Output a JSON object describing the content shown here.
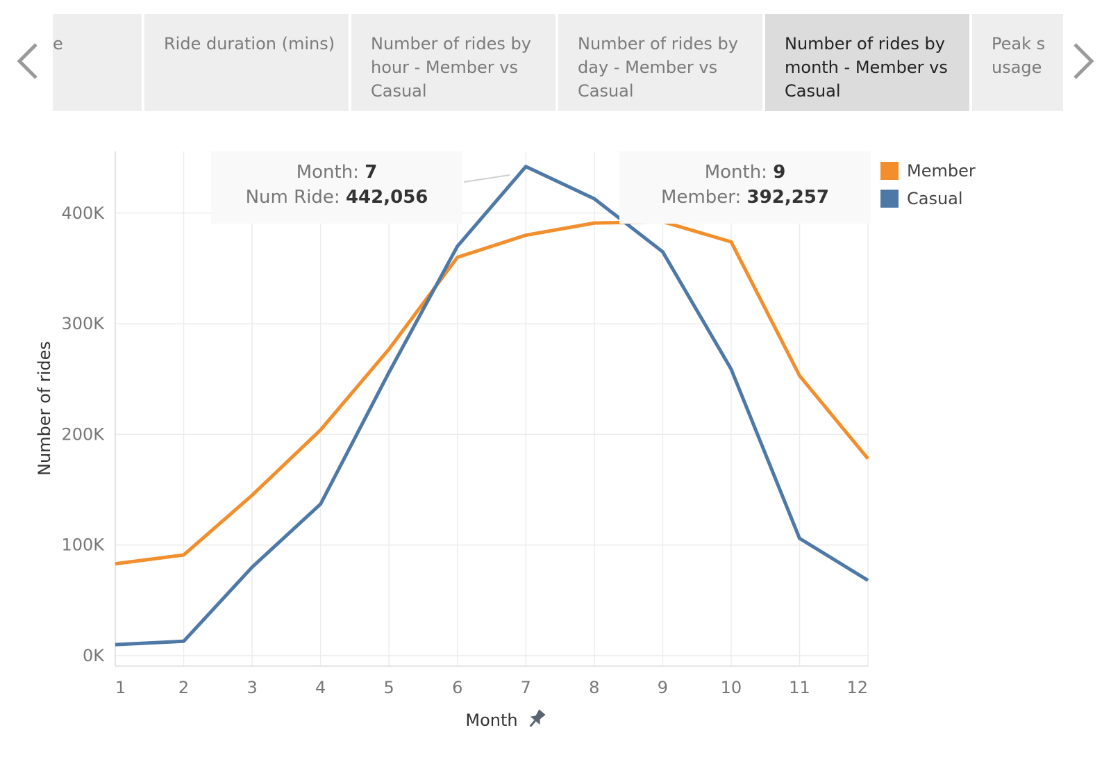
{
  "tabs": [
    {
      "label": "e",
      "active": false
    },
    {
      "label": "Ride duration (mins)",
      "active": false
    },
    {
      "label": "Number of rides by hour - Member vs Casual",
      "active": false
    },
    {
      "label": "Number of rides by day - Member vs Casual",
      "active": false
    },
    {
      "label": "Number of rides by month - Member vs Casual",
      "active": true
    },
    {
      "label": "Peak s usage",
      "active": false
    }
  ],
  "icons": {
    "prev": "chevron-left-icon",
    "next": "chevron-right-icon",
    "pin": "pin-icon"
  },
  "tooltips": [
    {
      "month_label": "Month:",
      "month_value": "7",
      "metric_label": "Num Ride:",
      "metric_value": "442,056"
    },
    {
      "month_label": "Month:",
      "month_value": "9",
      "metric_label": "Member:",
      "metric_value": "392,257"
    }
  ],
  "chart_data": {
    "type": "line",
    "xlabel": "Month",
    "ylabel": "Number of rides",
    "categories": [
      1,
      2,
      3,
      4,
      5,
      6,
      7,
      8,
      9,
      10,
      11,
      12
    ],
    "ylim": [
      0,
      450000
    ],
    "yticks": [
      "0K",
      "100K",
      "200K",
      "300K",
      "400K"
    ],
    "grid": true,
    "legend_position": "right",
    "series": [
      {
        "name": "Member",
        "color": "#f28e2b",
        "values": [
          83000,
          91000,
          145000,
          204000,
          277000,
          360000,
          380000,
          391000,
          392257,
          374000,
          253000,
          178000
        ]
      },
      {
        "name": "Casual",
        "color": "#4e79a7",
        "values": [
          10000,
          13000,
          80000,
          137000,
          256000,
          370000,
          442056,
          413000,
          365000,
          259000,
          106000,
          68000
        ]
      }
    ]
  }
}
